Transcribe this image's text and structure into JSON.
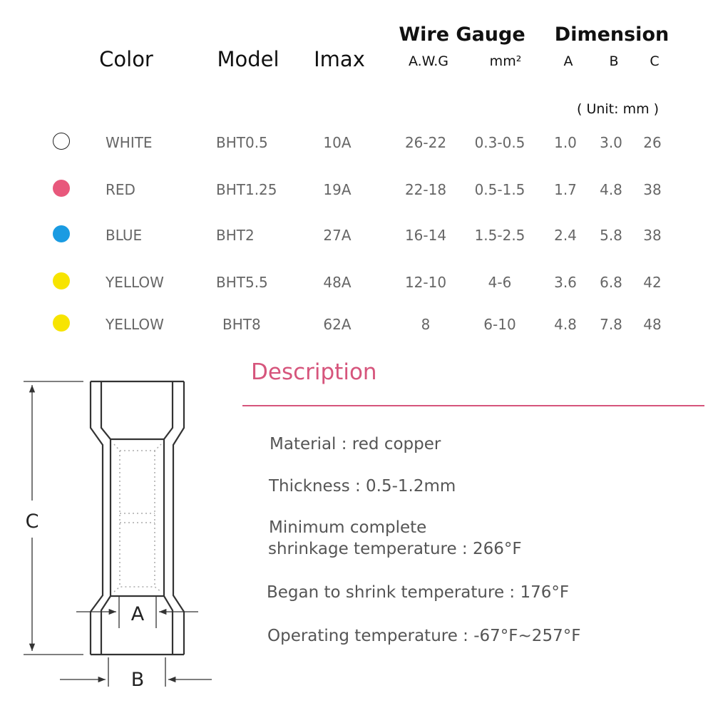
{
  "table": {
    "headers": {
      "color": "Color",
      "model": "Model",
      "imax": "Imax",
      "wire_gauge": "Wire Gauge",
      "awg": "A.W.G",
      "mm2": "mm²",
      "dimension": "Dimension",
      "a": "A",
      "b": "B",
      "c": "C"
    },
    "unit_note": "( Unit: mm )",
    "rows": [
      {
        "color": "WHITE",
        "swatch": "#ffffff",
        "model": "BHT0.5",
        "imax": "10A",
        "awg": "26-22",
        "mm2": "0.3-0.5",
        "a": "1.0",
        "b": "3.0",
        "c": "26"
      },
      {
        "color": "RED",
        "swatch": "#e8587c",
        "model": "BHT1.25",
        "imax": "19A",
        "awg": "22-18",
        "mm2": "0.5-1.5",
        "a": "1.7",
        "b": "4.8",
        "c": "38"
      },
      {
        "color": "BLUE",
        "swatch": "#1a9be2",
        "model": "BHT2",
        "imax": "27A",
        "awg": "16-14",
        "mm2": "1.5-2.5",
        "a": "2.4",
        "b": "5.8",
        "c": "38"
      },
      {
        "color": "YELLOW",
        "swatch": "#f7e400",
        "model": "BHT5.5",
        "imax": "48A",
        "awg": "12-10",
        "mm2": "4-6",
        "a": "3.6",
        "b": "6.8",
        "c": "42"
      },
      {
        "color": "YELLOW",
        "swatch": "#f7e400",
        "model": "BHT8",
        "imax": "62A",
        "awg": "8",
        "mm2": "6-10",
        "a": "4.8",
        "b": "7.8",
        "c": "48"
      }
    ]
  },
  "diagram": {
    "label_a": "A",
    "label_b": "B",
    "label_c": "C"
  },
  "description": {
    "title": "Description",
    "accent_color": "#d6557c",
    "lines": [
      "Material : red copper",
      "Thickness : 0.5-1.2mm",
      "Minimum complete",
      "shrinkage temperature : 266°F",
      "Began to shrink temperature : 176°F",
      "Operating temperature : -67°F~257°F"
    ]
  }
}
